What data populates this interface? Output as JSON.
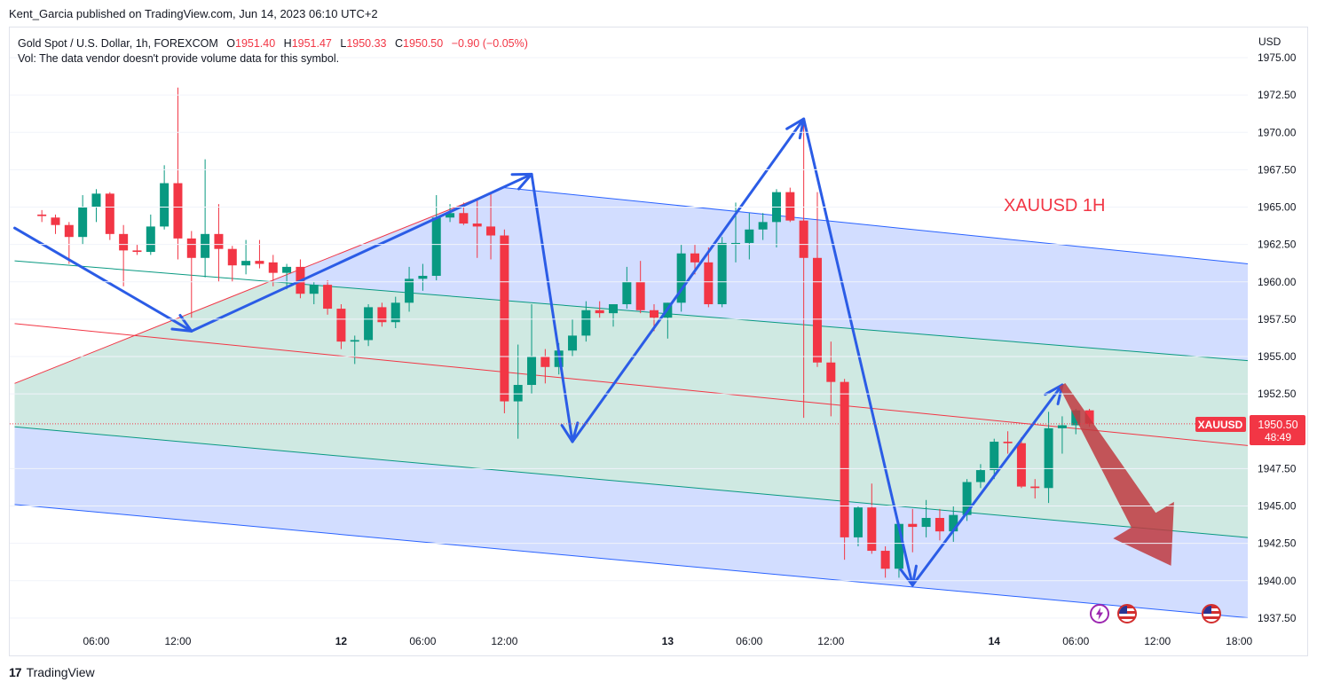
{
  "publisher": "Kent_Garcia published on TradingView.com, Jun 14, 2023 06:10 UTC+2",
  "legend": {
    "symbol": "Gold Spot / U.S. Dollar, 1h, FOREXCOM",
    "open_label": "O",
    "open": "1951.40",
    "high_label": "H",
    "high": "1951.47",
    "low_label": "L",
    "low": "1950.33",
    "close_label": "C",
    "close": "1950.50",
    "change": "−0.90 (−0.05%)",
    "volume_note": "Vol: The data vendor doesn't provide volume data for this symbol."
  },
  "currency": "USD",
  "annotation": "XAUUSD 1H",
  "price_badge": {
    "symbol": "XAUUSD",
    "price": "1950.50",
    "countdown": "48:49"
  },
  "footer": {
    "brand": "TradingView",
    "logo": "17"
  },
  "icons": [
    "lightning-icon",
    "us-flag-icon",
    "us-flag-icon"
  ],
  "colors": {
    "up": "#089981",
    "down": "#f23645",
    "arrow": "#2b5ce6",
    "channel_fill_outer": "#cdd9ff",
    "channel_fill_inner": "#cfe9e2"
  },
  "chart_data": {
    "type": "candlestick",
    "title": "Gold Spot / U.S. Dollar, 1h, FOREXCOM",
    "ylabel": "USD",
    "ylim": [
      1936.2,
      1976.2
    ],
    "y_ticks": [
      "1975.00",
      "1972.50",
      "1970.00",
      "1967.50",
      "1965.00",
      "1962.50",
      "1960.00",
      "1957.50",
      "1955.00",
      "1952.50",
      "1947.50",
      "1945.00",
      "1942.50",
      "1940.00",
      "1937.50"
    ],
    "x_ticks": [
      {
        "label": "06:00",
        "hour": 6
      },
      {
        "label": "12:00",
        "hour": 12
      },
      {
        "label": "12",
        "hour": 24
      },
      {
        "label": "06:00",
        "hour": 30
      },
      {
        "label": "12:00",
        "hour": 36
      },
      {
        "label": "13",
        "hour": 48
      },
      {
        "label": "06:00",
        "hour": 54
      },
      {
        "label": "12:00",
        "hour": 60
      },
      {
        "label": "14",
        "hour": 72
      },
      {
        "label": "06:00",
        "hour": 78
      },
      {
        "label": "12:00",
        "hour": 84
      },
      {
        "label": "18:00",
        "hour": 90
      }
    ],
    "x_bold_labels": [
      "12",
      "13",
      "14"
    ],
    "last_price": 1950.5,
    "candles": [
      [
        2,
        1964.5,
        1964.8,
        1964.0,
        1964.4
      ],
      [
        3,
        1964.3,
        1964.5,
        1963.2,
        1963.8
      ],
      [
        4,
        1963.8,
        1964.0,
        1961.2,
        1963.0
      ],
      [
        5,
        1963.0,
        1965.8,
        1962.5,
        1965.0
      ],
      [
        6,
        1965.0,
        1966.2,
        1964.0,
        1965.9
      ],
      [
        7,
        1965.9,
        1966.0,
        1962.8,
        1963.2
      ],
      [
        8,
        1963.2,
        1963.8,
        1959.7,
        1962.1
      ],
      [
        9,
        1962.1,
        1962.5,
        1961.8,
        1962.0
      ],
      [
        10,
        1962.0,
        1964.5,
        1961.8,
        1963.7
      ],
      [
        11,
        1963.7,
        1967.8,
        1963.5,
        1966.6
      ],
      [
        12,
        1966.6,
        1973.0,
        1961.5,
        1962.9
      ],
      [
        13,
        1962.9,
        1963.4,
        1957.6,
        1961.6
      ],
      [
        14,
        1961.6,
        1968.2,
        1960.3,
        1963.2
      ],
      [
        15,
        1963.2,
        1965.2,
        1960.0,
        1962.2
      ],
      [
        16,
        1962.2,
        1962.4,
        1960.0,
        1961.1
      ],
      [
        17,
        1961.1,
        1962.8,
        1960.5,
        1961.4
      ],
      [
        18,
        1961.4,
        1962.8,
        1960.9,
        1961.2
      ],
      [
        19,
        1961.3,
        1961.8,
        1959.7,
        1960.6
      ],
      [
        20,
        1960.6,
        1961.2,
        1959.5,
        1961.0
      ],
      [
        21,
        1961.0,
        1961.5,
        1958.9,
        1959.2
      ],
      [
        22,
        1959.2,
        1960.0,
        1958.5,
        1959.8
      ],
      [
        23,
        1959.8,
        1960.1,
        1957.8,
        1958.2
      ],
      [
        24,
        1958.2,
        1958.5,
        1955.5,
        1956.0
      ],
      [
        25,
        1956.0,
        1956.4,
        1954.5,
        1956.1
      ],
      [
        26,
        1956.1,
        1958.5,
        1955.7,
        1958.3
      ],
      [
        27,
        1958.3,
        1958.6,
        1957.0,
        1957.3
      ],
      [
        28,
        1957.3,
        1959.0,
        1956.9,
        1958.6
      ],
      [
        29,
        1958.6,
        1961.0,
        1958.0,
        1960.2
      ],
      [
        30,
        1960.2,
        1961.2,
        1959.4,
        1960.4
      ],
      [
        31,
        1960.4,
        1965.8,
        1960.1,
        1964.3
      ],
      [
        32,
        1964.3,
        1965.2,
        1964.0,
        1964.6
      ],
      [
        33,
        1964.6,
        1965.3,
        1963.8,
        1963.9
      ],
      [
        34,
        1963.9,
        1965.5,
        1961.6,
        1963.7
      ],
      [
        35,
        1963.7,
        1965.9,
        1961.5,
        1963.1
      ],
      [
        36,
        1963.1,
        1963.5,
        1951.2,
        1952.0
      ],
      [
        37,
        1952.0,
        1955.8,
        1949.5,
        1953.1
      ],
      [
        38,
        1953.1,
        1958.5,
        1952.5,
        1955.0
      ],
      [
        39,
        1955.0,
        1955.5,
        1953.2,
        1954.3
      ],
      [
        40,
        1954.3,
        1955.9,
        1953.8,
        1955.4
      ],
      [
        41,
        1955.4,
        1957.5,
        1955.0,
        1956.4
      ],
      [
        42,
        1956.4,
        1958.7,
        1956.0,
        1958.1
      ],
      [
        43,
        1958.1,
        1958.7,
        1957.6,
        1957.9
      ],
      [
        44,
        1957.9,
        1958.5,
        1957.0,
        1958.5
      ],
      [
        45,
        1958.5,
        1961.0,
        1958.2,
        1960.0
      ],
      [
        46,
        1960.0,
        1961.4,
        1957.9,
        1958.1
      ],
      [
        47,
        1958.1,
        1958.5,
        1956.7,
        1957.6
      ],
      [
        48,
        1957.6,
        1958.6,
        1956.2,
        1958.6
      ],
      [
        49,
        1958.6,
        1962.5,
        1958.0,
        1961.9
      ],
      [
        50,
        1961.9,
        1962.5,
        1960.5,
        1961.3
      ],
      [
        51,
        1961.3,
        1962.3,
        1958.3,
        1958.5
      ],
      [
        52,
        1958.5,
        1963.0,
        1958.3,
        1962.6
      ],
      [
        53,
        1962.6,
        1965.3,
        1961.3,
        1962.6
      ],
      [
        54,
        1962.6,
        1964.6,
        1961.5,
        1963.5
      ],
      [
        55,
        1963.5,
        1964.6,
        1962.8,
        1964.0
      ],
      [
        56,
        1964.0,
        1966.2,
        1962.3,
        1966.0
      ],
      [
        57,
        1966.0,
        1966.3,
        1964.0,
        1964.1
      ],
      [
        58,
        1964.1,
        1970.5,
        1950.9,
        1961.6
      ],
      [
        59,
        1961.6,
        1966.0,
        1954.3,
        1954.6
      ],
      [
        60,
        1954.6,
        1956.0,
        1951.0,
        1953.3
      ],
      [
        61,
        1953.3,
        1953.5,
        1941.4,
        1942.9
      ],
      [
        62,
        1942.9,
        1945.0,
        1942.3,
        1944.9
      ],
      [
        63,
        1944.9,
        1946.5,
        1941.8,
        1942.0
      ],
      [
        64,
        1942.0,
        1942.3,
        1940.2,
        1940.8
      ],
      [
        65,
        1940.8,
        1943.9,
        1940.2,
        1943.8
      ],
      [
        66,
        1943.8,
        1944.8,
        1941.9,
        1943.6
      ],
      [
        67,
        1943.6,
        1945.4,
        1942.9,
        1944.2
      ],
      [
        68,
        1944.2,
        1944.8,
        1942.7,
        1943.3
      ],
      [
        69,
        1943.3,
        1945.0,
        1942.6,
        1944.4
      ],
      [
        70,
        1944.4,
        1946.8,
        1944.0,
        1946.6
      ],
      [
        71,
        1946.6,
        1947.8,
        1946.2,
        1947.4
      ],
      [
        72,
        1947.4,
        1949.5,
        1946.8,
        1949.3
      ],
      [
        73,
        1949.3,
        1950.0,
        1948.5,
        1949.2
      ],
      [
        74,
        1949.2,
        1949.6,
        1946.2,
        1946.3
      ],
      [
        75,
        1946.3,
        1946.8,
        1945.5,
        1946.2
      ],
      [
        76,
        1946.2,
        1951.3,
        1945.2,
        1950.2
      ],
      [
        77,
        1950.2,
        1951.0,
        1948.5,
        1950.4
      ],
      [
        78,
        1950.4,
        1951.5,
        1949.8,
        1951.4
      ],
      [
        79,
        1951.4,
        1951.5,
        1950.3,
        1950.5
      ]
    ],
    "drawings": {
      "channel_upper": [
        [
          36,
          1966.3
        ],
        [
          110,
          1959.4
        ]
      ],
      "channel_mid_upper": [
        [
          0,
          1961.4
        ],
        [
          110,
          1953.3
        ]
      ],
      "channel_mid": [
        [
          0,
          1957.2
        ],
        [
          110,
          1947.3
        ]
      ],
      "channel_mid_lower": [
        [
          0,
          1950.3
        ],
        [
          110,
          1941.3
        ]
      ],
      "channel_lower": [
        [
          0,
          1945.1
        ],
        [
          110,
          1935.9
        ]
      ],
      "channel_apex": [
        [
          0,
          1953.2
        ],
        [
          36,
          1966.3
        ]
      ],
      "blue_path": [
        [
          0,
          1963.6
        ],
        [
          13,
          1956.7
        ],
        [
          38,
          1967.2
        ],
        [
          41,
          1949.3
        ],
        [
          58,
          1970.9
        ],
        [
          66,
          1939.7
        ],
        [
          77,
          1953.1
        ]
      ],
      "red_arrow": [
        [
          77,
          1953.1
        ],
        [
          85,
          1941.0
        ]
      ]
    }
  }
}
